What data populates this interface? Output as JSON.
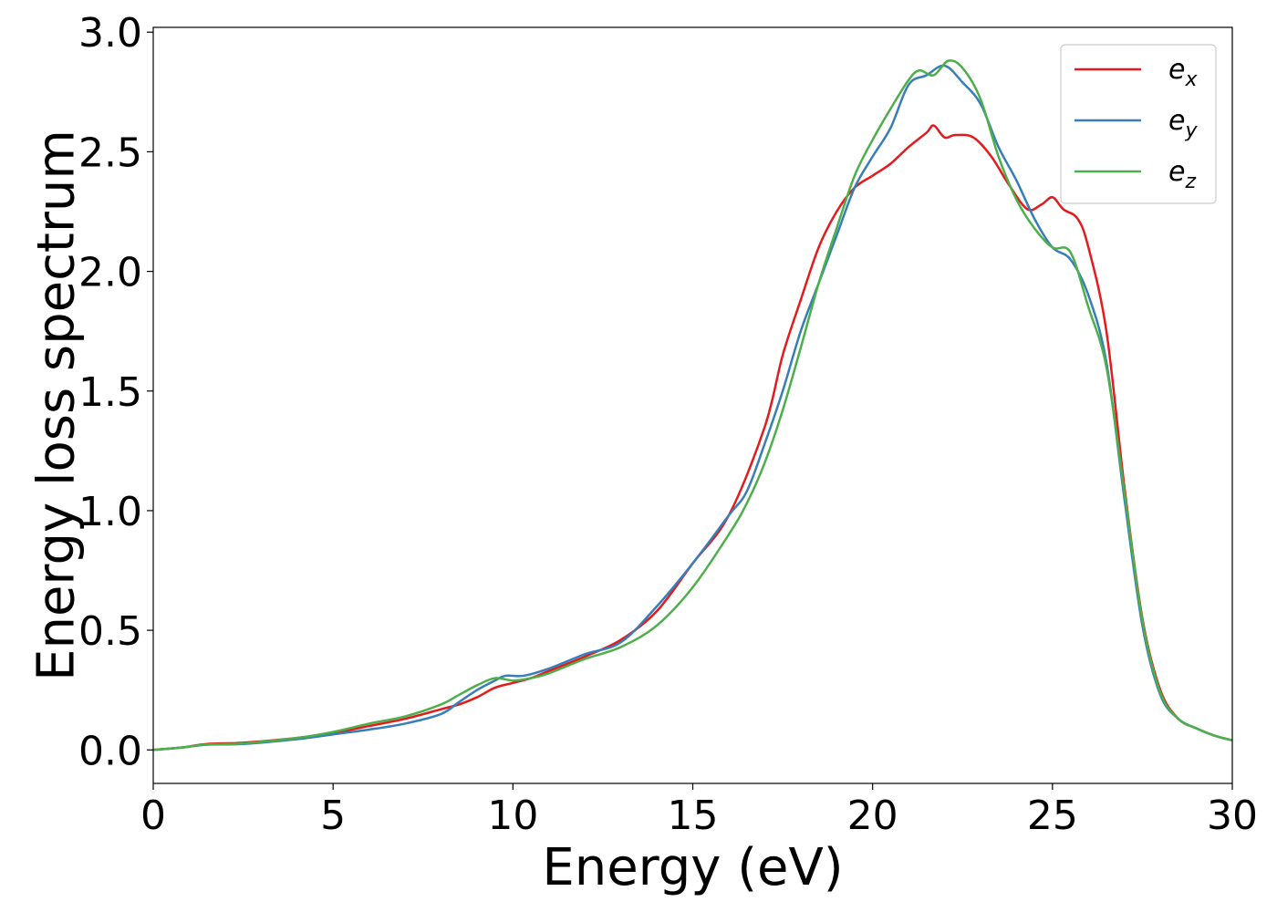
{
  "chart_data": {
    "type": "line",
    "xlabel": "Energy (eV)",
    "ylabel": "Energy loss spectrum",
    "xlim": [
      0,
      30
    ],
    "ylim": [
      -0.14,
      3.02
    ],
    "xticks": [
      0,
      5,
      10,
      15,
      20,
      25,
      30
    ],
    "xtick_labels": [
      "0",
      "5",
      "10",
      "15",
      "20",
      "25",
      "30"
    ],
    "yticks": [
      0.0,
      0.5,
      1.0,
      1.5,
      2.0,
      2.5,
      3.0
    ],
    "ytick_labels": [
      "0.0",
      "0.5",
      "1.0",
      "1.5",
      "2.0",
      "2.5",
      "3.0"
    ],
    "grid": false,
    "legend_position": "top-right",
    "series": [
      {
        "name": "e",
        "subscript": "x",
        "color": "#e41a1c",
        "x": [
          0,
          0.8,
          1.5,
          2.5,
          4,
          5,
          6,
          7,
          8,
          8.5,
          9,
          9.5,
          10,
          10.5,
          11,
          12,
          13,
          14,
          15,
          16,
          17,
          17.5,
          18,
          18.5,
          19,
          19.5,
          20,
          20.5,
          21,
          21.5,
          21.7,
          22,
          22.3,
          22.8,
          23.3,
          23.8,
          24.3,
          24.7,
          25,
          25.3,
          25.7,
          26,
          26.5,
          27,
          27.5,
          28,
          28.5,
          29,
          29.5,
          30
        ],
        "y": [
          0.0,
          0.01,
          0.025,
          0.03,
          0.05,
          0.07,
          0.1,
          0.13,
          0.17,
          0.19,
          0.22,
          0.26,
          0.28,
          0.3,
          0.33,
          0.39,
          0.46,
          0.58,
          0.78,
          0.98,
          1.35,
          1.65,
          1.88,
          2.1,
          2.25,
          2.35,
          2.4,
          2.45,
          2.52,
          2.58,
          2.61,
          2.56,
          2.57,
          2.56,
          2.48,
          2.36,
          2.26,
          2.28,
          2.31,
          2.26,
          2.22,
          2.1,
          1.75,
          1.1,
          0.55,
          0.25,
          0.13,
          0.09,
          0.06,
          0.04
        ]
      },
      {
        "name": "e",
        "subscript": "y",
        "color": "#377eb8",
        "x": [
          0,
          0.8,
          1.5,
          2.5,
          4,
          5,
          6,
          7,
          8,
          8.5,
          9,
          9.5,
          9.8,
          10.3,
          11,
          12,
          13,
          14,
          15,
          16,
          16.5,
          17,
          17.5,
          18,
          18.5,
          19,
          19.5,
          20,
          20.5,
          21,
          21.5,
          22,
          22.5,
          23,
          23.5,
          24,
          24.5,
          25,
          25.5,
          26,
          26.5,
          27,
          27.5,
          28,
          28.5,
          29,
          29.5,
          30
        ],
        "y": [
          0.0,
          0.01,
          0.022,
          0.025,
          0.045,
          0.065,
          0.085,
          0.11,
          0.15,
          0.2,
          0.25,
          0.29,
          0.31,
          0.31,
          0.34,
          0.4,
          0.45,
          0.6,
          0.78,
          0.98,
          1.08,
          1.28,
          1.5,
          1.75,
          1.95,
          2.15,
          2.35,
          2.48,
          2.6,
          2.78,
          2.82,
          2.86,
          2.79,
          2.7,
          2.52,
          2.38,
          2.22,
          2.1,
          2.05,
          1.9,
          1.62,
          1.05,
          0.52,
          0.23,
          0.13,
          0.09,
          0.06,
          0.04
        ]
      },
      {
        "name": "e",
        "subscript": "z",
        "color": "#4daf4a",
        "x": [
          0,
          0.8,
          1.5,
          2.5,
          4,
          5,
          6,
          7,
          8,
          8.5,
          9,
          9.5,
          10,
          10.5,
          11,
          12,
          13,
          14,
          15,
          16,
          16.5,
          17,
          17.5,
          18,
          18.5,
          19,
          19.5,
          20,
          20.5,
          21,
          21.3,
          21.7,
          22.1,
          22.5,
          23,
          23.5,
          24,
          24.5,
          25,
          25.5,
          26,
          26.5,
          27,
          27.5,
          28,
          28.5,
          29,
          29.5,
          30
        ],
        "y": [
          0.0,
          0.01,
          0.022,
          0.027,
          0.05,
          0.075,
          0.11,
          0.14,
          0.19,
          0.23,
          0.27,
          0.3,
          0.29,
          0.3,
          0.32,
          0.38,
          0.43,
          0.52,
          0.68,
          0.9,
          1.03,
          1.2,
          1.42,
          1.68,
          1.95,
          2.18,
          2.4,
          2.55,
          2.68,
          2.8,
          2.84,
          2.82,
          2.88,
          2.85,
          2.72,
          2.48,
          2.3,
          2.18,
          2.1,
          2.08,
          1.85,
          1.6,
          1.08,
          0.54,
          0.24,
          0.13,
          0.09,
          0.06,
          0.04
        ]
      }
    ]
  }
}
